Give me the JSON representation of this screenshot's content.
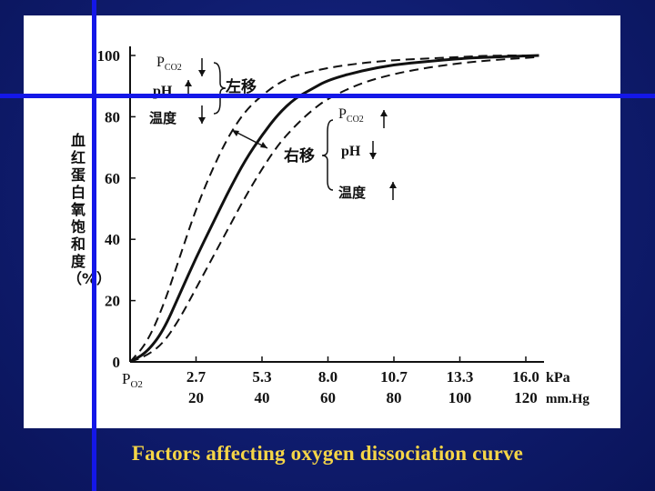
{
  "caption": "Factors affecting oxygen dissociation curve",
  "colors": {
    "background": "#0f1c6e",
    "caption": "#f5d547",
    "crosshair": "#1417e8",
    "panel": "#ffffff",
    "ink": "#111111"
  },
  "chart_data": {
    "type": "line",
    "ylabel": "血红蛋白氧饱和度（%）",
    "y_ticks": [
      "0",
      "20",
      "40",
      "60",
      "80",
      "100"
    ],
    "ylim": [
      0,
      100
    ],
    "x_start_label": "P",
    "x_start_sub": "O2",
    "x_ticks_kpa": [
      "2.7",
      "5.3",
      "8.0",
      "10.7",
      "13.3",
      "16.0"
    ],
    "x_ticks_mmhg": [
      "20",
      "40",
      "60",
      "80",
      "100",
      "120"
    ],
    "x_unit_kpa": "kPa",
    "x_unit_mmhg": "mm.Hg",
    "xlim_mmhg": [
      0,
      130
    ],
    "series": [
      {
        "style": "solid",
        "points": [
          [
            0,
            0
          ],
          [
            5,
            3
          ],
          [
            10,
            10
          ],
          [
            15,
            22
          ],
          [
            20,
            34
          ],
          [
            25,
            45
          ],
          [
            30,
            56
          ],
          [
            35,
            66
          ],
          [
            40,
            74
          ],
          [
            45,
            81
          ],
          [
            50,
            86
          ],
          [
            55,
            89
          ],
          [
            60,
            92
          ],
          [
            70,
            95
          ],
          [
            80,
            97
          ],
          [
            90,
            98
          ],
          [
            100,
            99
          ],
          [
            110,
            99.5
          ],
          [
            124,
            100
          ]
        ]
      },
      {
        "style": "dashed",
        "points": [
          [
            0,
            0
          ],
          [
            5,
            6
          ],
          [
            10,
            18
          ],
          [
            15,
            34
          ],
          [
            20,
            50
          ],
          [
            25,
            63
          ],
          [
            30,
            74
          ],
          [
            35,
            82
          ],
          [
            40,
            87
          ],
          [
            45,
            91
          ],
          [
            50,
            93.5
          ],
          [
            60,
            96
          ],
          [
            70,
            97.5
          ],
          [
            80,
            98.5
          ],
          [
            90,
            99
          ],
          [
            100,
            99.5
          ],
          [
            110,
            100
          ],
          [
            124,
            100
          ]
        ]
      },
      {
        "style": "dashed",
        "points": [
          [
            0,
            0
          ],
          [
            5,
            2
          ],
          [
            10,
            6
          ],
          [
            15,
            14
          ],
          [
            20,
            24
          ],
          [
            25,
            34
          ],
          [
            30,
            44
          ],
          [
            35,
            54
          ],
          [
            40,
            63
          ],
          [
            45,
            71
          ],
          [
            50,
            77
          ],
          [
            55,
            82
          ],
          [
            60,
            86
          ],
          [
            70,
            91
          ],
          [
            80,
            94
          ],
          [
            90,
            96
          ],
          [
            100,
            97.5
          ],
          [
            110,
            98.5
          ],
          [
            124,
            99.5
          ]
        ]
      }
    ],
    "annotations": {
      "left_group": {
        "pco2_main": "P",
        "pco2_sub": "CO2",
        "ph": "pH",
        "temp": "温度",
        "label": "左移",
        "arrows": [
          "down",
          "up",
          "down"
        ]
      },
      "right_group": {
        "pco2_main": "P",
        "pco2_sub": "CO2",
        "ph": "pH",
        "temp": "温度",
        "label": "右移",
        "arrows": [
          "up",
          "down",
          "up"
        ]
      }
    }
  }
}
